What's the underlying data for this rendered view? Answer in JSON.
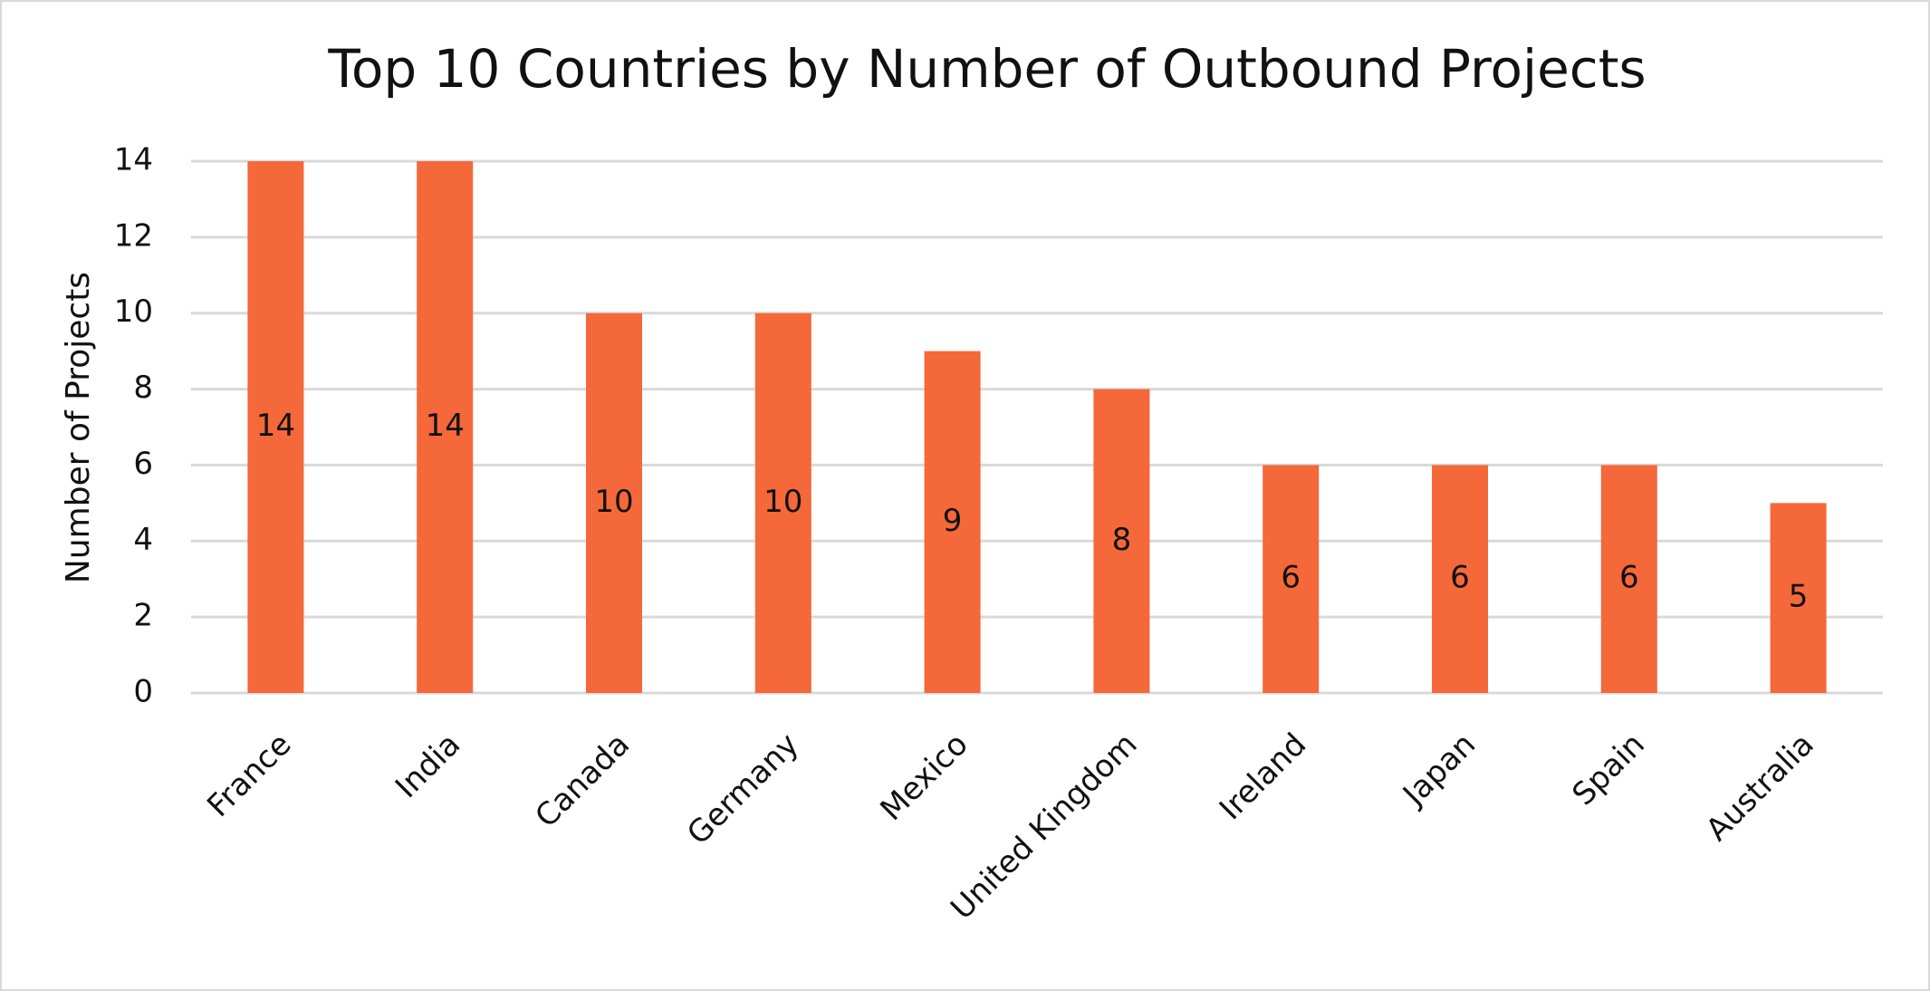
{
  "chart_data": {
    "type": "bar",
    "title": "Top 10 Countries by Number of Outbound Projects",
    "y_label": "Number of Projects",
    "categories": [
      "France",
      "India",
      "Canada",
      "Germany",
      "Mexico",
      "United Kingdom",
      "Ireland",
      "Japan",
      "Spain",
      "Australia"
    ],
    "values": [
      14,
      14,
      10,
      10,
      9,
      8,
      6,
      6,
      6,
      5
    ],
    "color": "#f4683a",
    "ylim": [
      0,
      14
    ],
    "yticks": [
      0,
      2,
      4,
      6,
      8,
      10,
      12,
      14
    ],
    "grid": true,
    "data_labels": true
  }
}
